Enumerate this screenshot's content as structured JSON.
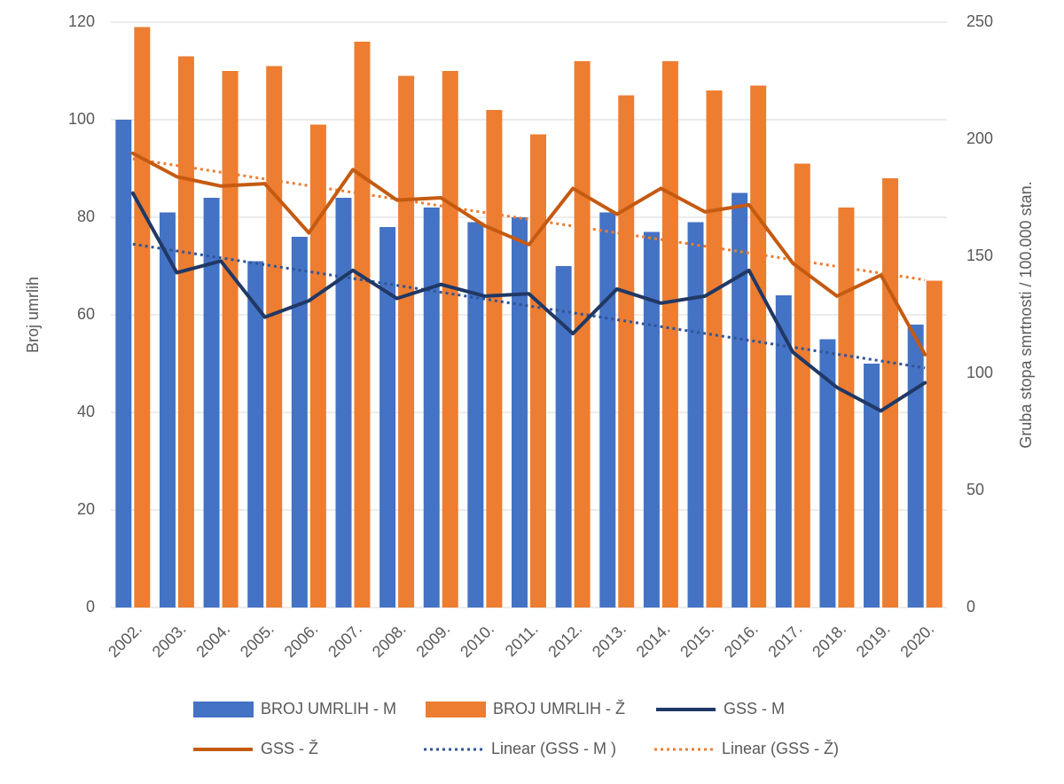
{
  "chart_data": {
    "type": "combo",
    "categories": [
      "2002.",
      "2003.",
      "2004.",
      "2005.",
      "2006.",
      "2007.",
      "2008.",
      "2009.",
      "2010.",
      "2011.",
      "2012.",
      "2013.",
      "2014.",
      "2015.",
      "2016.",
      "2017.",
      "2018.",
      "2019.",
      "2020."
    ],
    "series": [
      {
        "name": "BROJ UMRLIH - M",
        "type": "bar",
        "color": "#4472c4",
        "values": [
          100,
          81,
          84,
          71,
          76,
          84,
          78,
          82,
          79,
          80,
          70,
          81,
          77,
          79,
          85,
          64,
          55,
          50,
          58
        ]
      },
      {
        "name": "BROJ UMRLIH - Ž",
        "type": "bar",
        "color": "#ed7d31",
        "values": [
          119,
          113,
          110,
          111,
          99,
          116,
          109,
          110,
          102,
          97,
          112,
          105,
          112,
          106,
          107,
          91,
          82,
          88,
          67
        ]
      },
      {
        "name": "GSS - M",
        "type": "line",
        "axis": "y2",
        "color": "#203864",
        "values": [
          177,
          143,
          148,
          124,
          131,
          144,
          132,
          138,
          133,
          134,
          117,
          136,
          130,
          133,
          144,
          109,
          94,
          84,
          96
        ]
      },
      {
        "name": "GSS - Ž",
        "type": "line",
        "axis": "y2",
        "color": "#c55a11",
        "values": [
          194,
          184,
          180,
          181,
          160,
          187,
          174,
          175,
          163,
          155,
          179,
          168,
          179,
          169,
          172,
          147,
          133,
          142,
          108
        ]
      },
      {
        "name": "Linear (GSS - M )",
        "type": "trend",
        "axis": "y2",
        "color": "#2f5597",
        "trend_of": 2
      },
      {
        "name": "Linear (GSS - Ž)",
        "type": "trend",
        "axis": "y2",
        "color": "#ed7d31",
        "trend_of": 3
      }
    ],
    "y_label": "Broj umrlih",
    "y2_label": "Gruba stopa smrtnosti / 100.000 stan.",
    "ylim": [
      0,
      120
    ],
    "yticks": [
      0,
      20,
      40,
      60,
      80,
      100,
      120
    ],
    "y2lim": [
      0,
      250
    ],
    "y2ticks": [
      0,
      50,
      100,
      150,
      200,
      250
    ],
    "grid": true,
    "legend": "bottom"
  }
}
